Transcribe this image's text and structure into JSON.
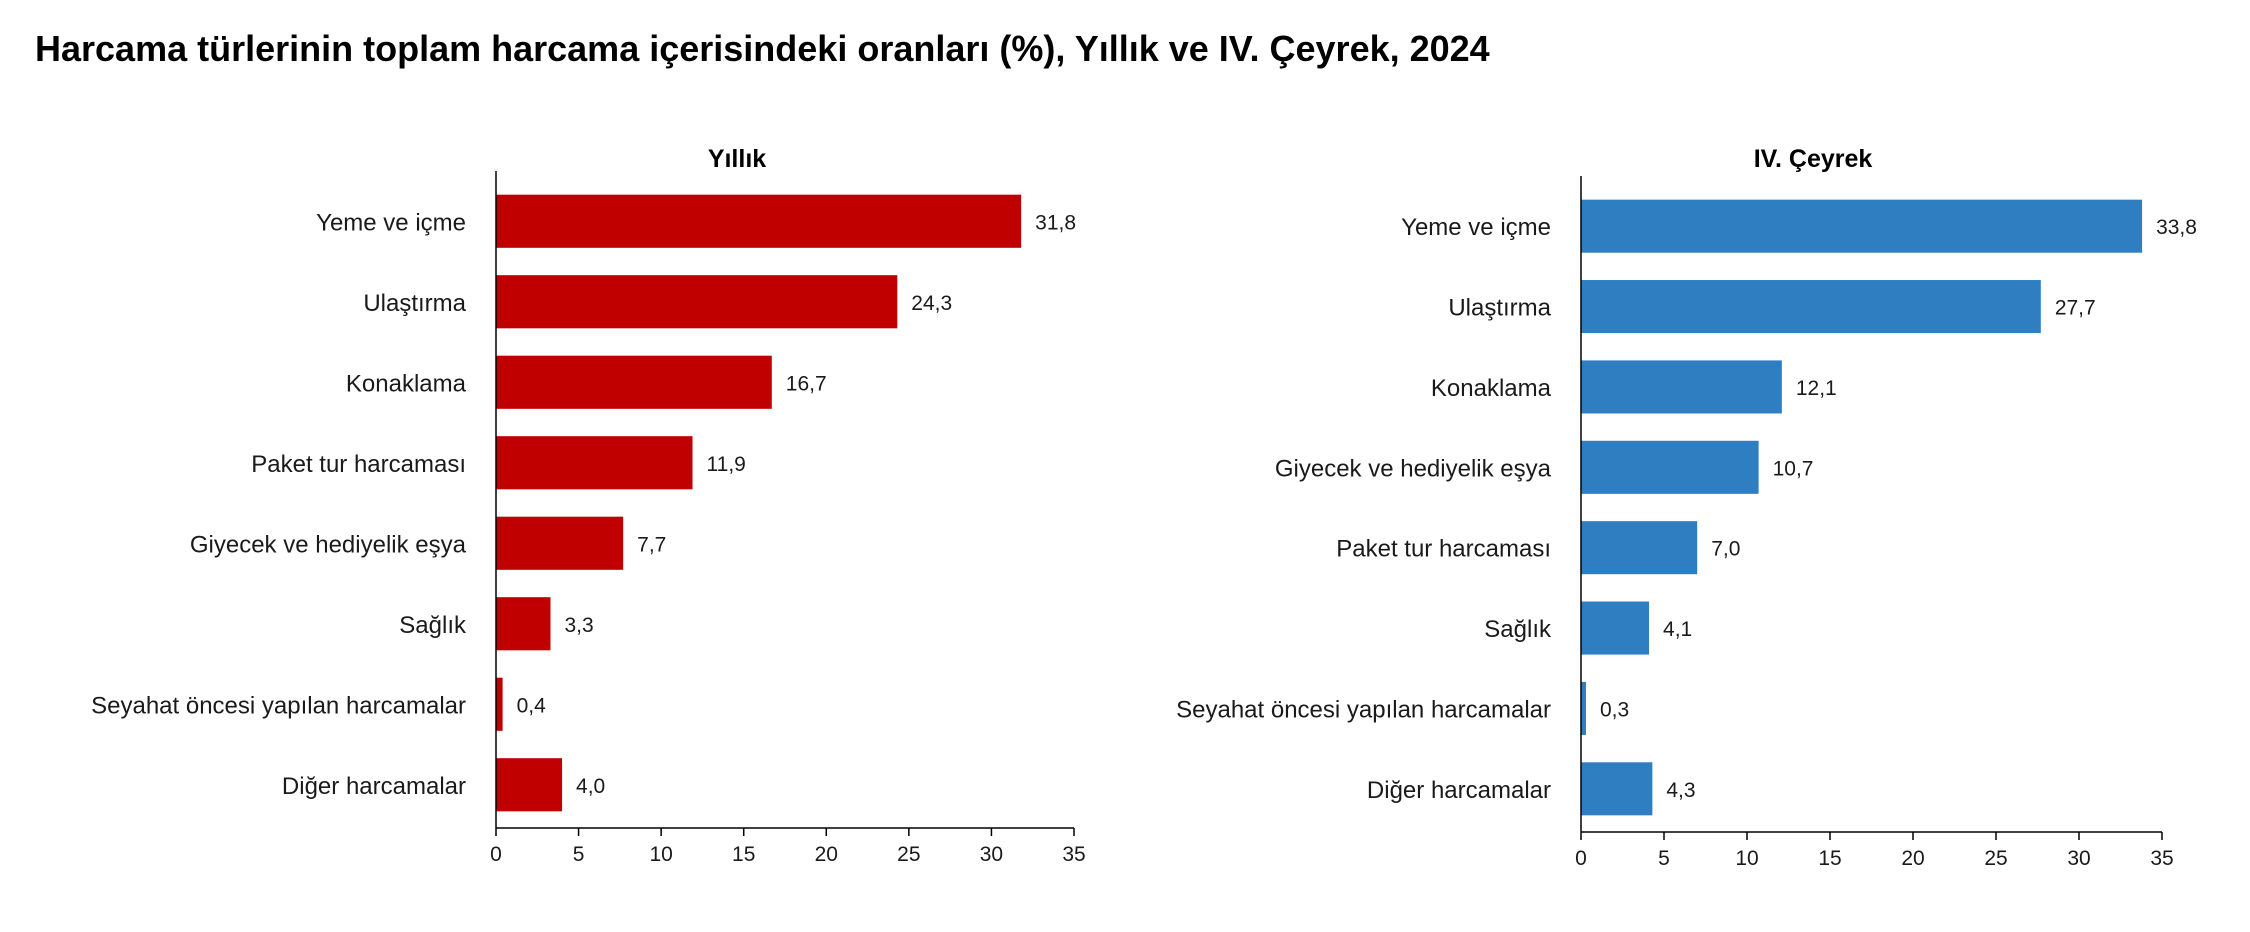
{
  "title": "Harcama türlerinin toplam harcama içerisindeki oranları (%), Yıllık ve IV. Çeyrek, 2024",
  "chart_data": [
    {
      "type": "bar",
      "orientation": "horizontal",
      "title": "Yıllık",
      "color": "#c00000",
      "categories": [
        "Yeme ve içme",
        "Ulaştırma",
        "Konaklama",
        "Paket tur harcaması",
        "Giyecek ve hediyelik eşya",
        "Sağlık",
        "Seyahat öncesi yapılan harcamalar",
        "Diğer harcamalar"
      ],
      "values": [
        31.8,
        24.3,
        16.7,
        11.9,
        7.7,
        3.3,
        0.4,
        4.0
      ],
      "value_labels": [
        "31,8",
        "24,3",
        "16,7",
        "11,9",
        "7,7",
        "3,3",
        "0,4",
        "4,0"
      ],
      "xlim": [
        0,
        35
      ],
      "xticks": [
        "0",
        "5",
        "10",
        "15",
        "20",
        "25",
        "30",
        "35"
      ],
      "grid": false,
      "legend": "none"
    },
    {
      "type": "bar",
      "orientation": "horizontal",
      "title": "IV. Çeyrek",
      "color": "#2e7ec1",
      "categories": [
        "Yeme ve içme",
        "Ulaştırma",
        "Konaklama",
        "Giyecek ve hediyelik eşya",
        "Paket tur harcaması",
        "Sağlık",
        "Seyahat öncesi yapılan harcamalar",
        "Diğer harcamalar"
      ],
      "values": [
        33.8,
        27.7,
        12.1,
        10.7,
        7.0,
        4.1,
        0.3,
        4.3
      ],
      "value_labels": [
        "33,8",
        "27,7",
        "12,1",
        "10,7",
        "7,0",
        "4,1",
        "0,3",
        "4,3"
      ],
      "xlim": [
        0,
        35
      ],
      "xticks": [
        "0",
        "5",
        "10",
        "15",
        "20",
        "25",
        "30",
        "35"
      ],
      "grid": false,
      "legend": "none"
    }
  ]
}
